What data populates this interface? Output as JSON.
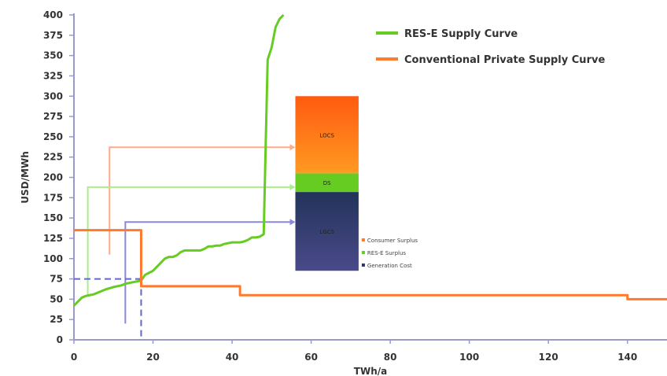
{
  "chart_data": {
    "type": "line",
    "xlabel": "TWh/a",
    "ylabel": "USD/MWh",
    "xlim": [
      0,
      150
    ],
    "ylim": [
      0,
      400
    ],
    "x_ticks": [
      "0",
      "20",
      "40",
      "60",
      "80",
      "100",
      "120",
      "140"
    ],
    "y_ticks": [
      "0",
      "25",
      "50",
      "75",
      "100",
      "125",
      "150",
      "175",
      "200",
      "225",
      "250",
      "275",
      "300",
      "325",
      "350",
      "375",
      "400"
    ],
    "legend_position": "top-right",
    "series": [
      {
        "name": "RES-E Supply Curve",
        "color": "#66cc22",
        "x": [
          0,
          1,
          2,
          3,
          5,
          7,
          8,
          10,
          12,
          13,
          15,
          17,
          18,
          20,
          21,
          22,
          23,
          24,
          25,
          26,
          27,
          28,
          29,
          30,
          32,
          33,
          34,
          35,
          36,
          37,
          38,
          40,
          42,
          43,
          44,
          45,
          46,
          47,
          48,
          48.5,
          49,
          50,
          51,
          52,
          53
        ],
        "y": [
          42,
          47,
          52,
          54,
          56,
          60,
          62,
          65,
          67,
          69,
          71,
          73,
          80,
          85,
          90,
          95,
          100,
          102,
          102,
          104,
          108,
          110,
          110,
          110,
          110,
          112,
          115,
          115,
          116,
          116,
          118,
          120,
          120,
          121,
          123,
          126,
          126,
          127,
          130,
          240,
          345,
          360,
          385,
          395,
          400
        ]
      },
      {
        "name": "Conventional Private Supply Curve",
        "color": "#ff7a2e",
        "x": [
          0,
          17,
          17,
          42,
          42,
          140,
          140,
          150
        ],
        "y": [
          135,
          135,
          66,
          66,
          55,
          55,
          50,
          50
        ]
      }
    ],
    "stacked_bar": {
      "x_range": [
        56,
        72
      ],
      "segments": [
        {
          "name": "Generation Cost",
          "short_label": "LGCS",
          "from": 85,
          "to": 182,
          "color": "#333366"
        },
        {
          "name": "RES-E Surplus",
          "short_label": "DS",
          "from": 182,
          "to": 205,
          "color": "#66cc22"
        },
        {
          "name": "Consumer Surplus",
          "short_label": "LOCS",
          "from": 205,
          "to": 300,
          "color": "#ff7a22"
        }
      ]
    },
    "guides": [
      {
        "type": "elbow-arrow",
        "color": "#ffaa88",
        "x": 9,
        "y_start": 105,
        "y_end": 237,
        "x_end": 56
      },
      {
        "type": "elbow-arrow",
        "color": "#aaee88",
        "x": 3.5,
        "y_start": 55,
        "y_end": 188,
        "x_end": 56
      },
      {
        "type": "elbow-arrow",
        "color": "#8888dd",
        "x": 13,
        "y_start": 20,
        "y_end": 145,
        "x_end": 56
      }
    ],
    "intersection": {
      "x": 17,
      "y": 75,
      "color": "#6666cc"
    }
  }
}
